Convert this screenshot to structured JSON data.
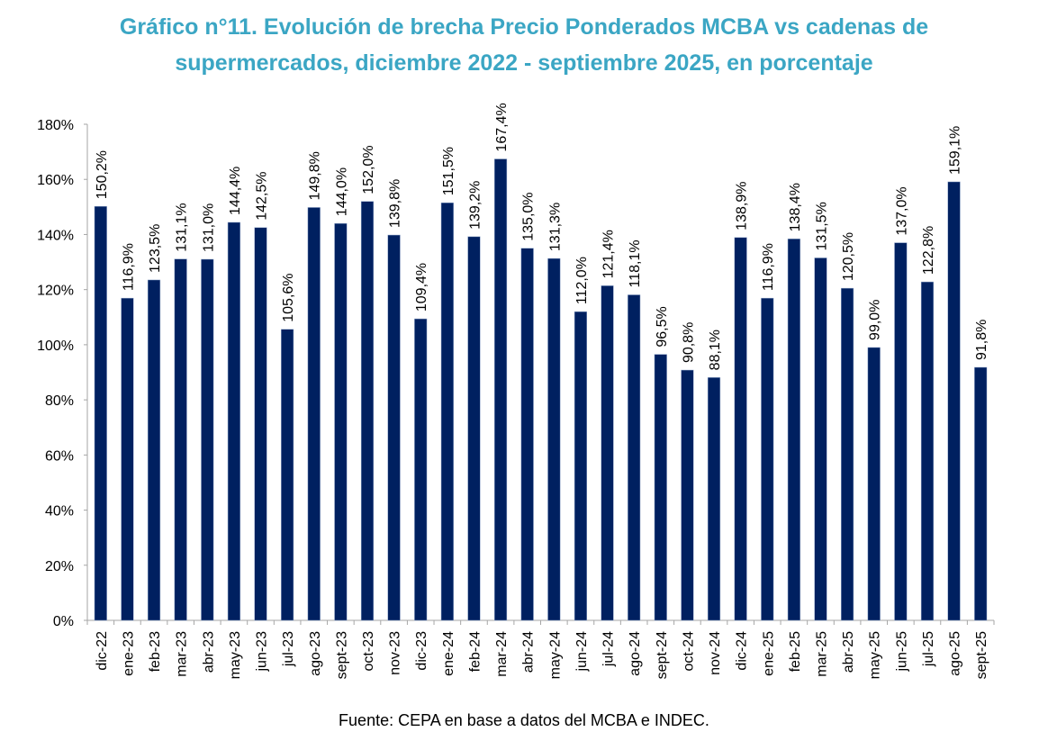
{
  "chart_data": {
    "type": "bar",
    "title_line1": "Gráfico n°11.  Evolución de brecha Precio Ponderados MCBA vs cadenas de",
    "title_line2": "supermercados, diciembre 2022 - septiembre 2025, en porcentaje",
    "xlabel": "",
    "ylabel": "",
    "ylim": [
      0,
      180
    ],
    "yticks": [
      0,
      20,
      40,
      60,
      80,
      100,
      120,
      140,
      160,
      180
    ],
    "ytick_labels": [
      "0%",
      "20%",
      "40%",
      "60%",
      "80%",
      "100%",
      "120%",
      "140%",
      "160%",
      "180%"
    ],
    "grid": false,
    "legend": "none",
    "bar_color": "#002060",
    "categories": [
      "dic-22",
      "ene-23",
      "feb-23",
      "mar-23",
      "abr-23",
      "may-23",
      "jun-23",
      "jul-23",
      "ago-23",
      "sept-23",
      "oct-23",
      "nov-23",
      "dic-23",
      "ene-24",
      "feb-24",
      "mar-24",
      "abr-24",
      "may-24",
      "jun-24",
      "jul-24",
      "ago-24",
      "sept-24",
      "oct-24",
      "nov-24",
      "dic-24",
      "ene-25",
      "feb-25",
      "mar-25",
      "abr-25",
      "may-25",
      "jun-25",
      "jul-25",
      "ago-25",
      "sept-25"
    ],
    "values": [
      150.2,
      116.9,
      123.5,
      131.1,
      131.0,
      144.4,
      142.5,
      105.6,
      149.8,
      144.0,
      152.0,
      139.8,
      109.4,
      151.5,
      139.2,
      167.4,
      135.0,
      131.3,
      112.0,
      121.4,
      118.1,
      96.5,
      90.8,
      88.1,
      138.9,
      116.9,
      138.4,
      131.5,
      120.5,
      99.0,
      137.0,
      122.8,
      159.1,
      91.8
    ],
    "data_labels": [
      "150,2%",
      "116,9%",
      "123,5%",
      "131,1%",
      "131,0%",
      "144,4%",
      "142,5%",
      "105,6%",
      "149,8%",
      "144,0%",
      "152,0%",
      "139,8%",
      "109,4%",
      "151,5%",
      "139,2%",
      "167,4%",
      "135,0%",
      "131,3%",
      "112,0%",
      "121,4%",
      "118,1%",
      "96,5%",
      "90,8%",
      "88,1%",
      "138,9%",
      "116,9%",
      "138,4%",
      "131,5%",
      "120,5%",
      "99,0%",
      "137,0%",
      "122,8%",
      "159,1%",
      "91,8%"
    ],
    "source": "Fuente: CEPA en base a datos del MCBA e INDEC."
  }
}
